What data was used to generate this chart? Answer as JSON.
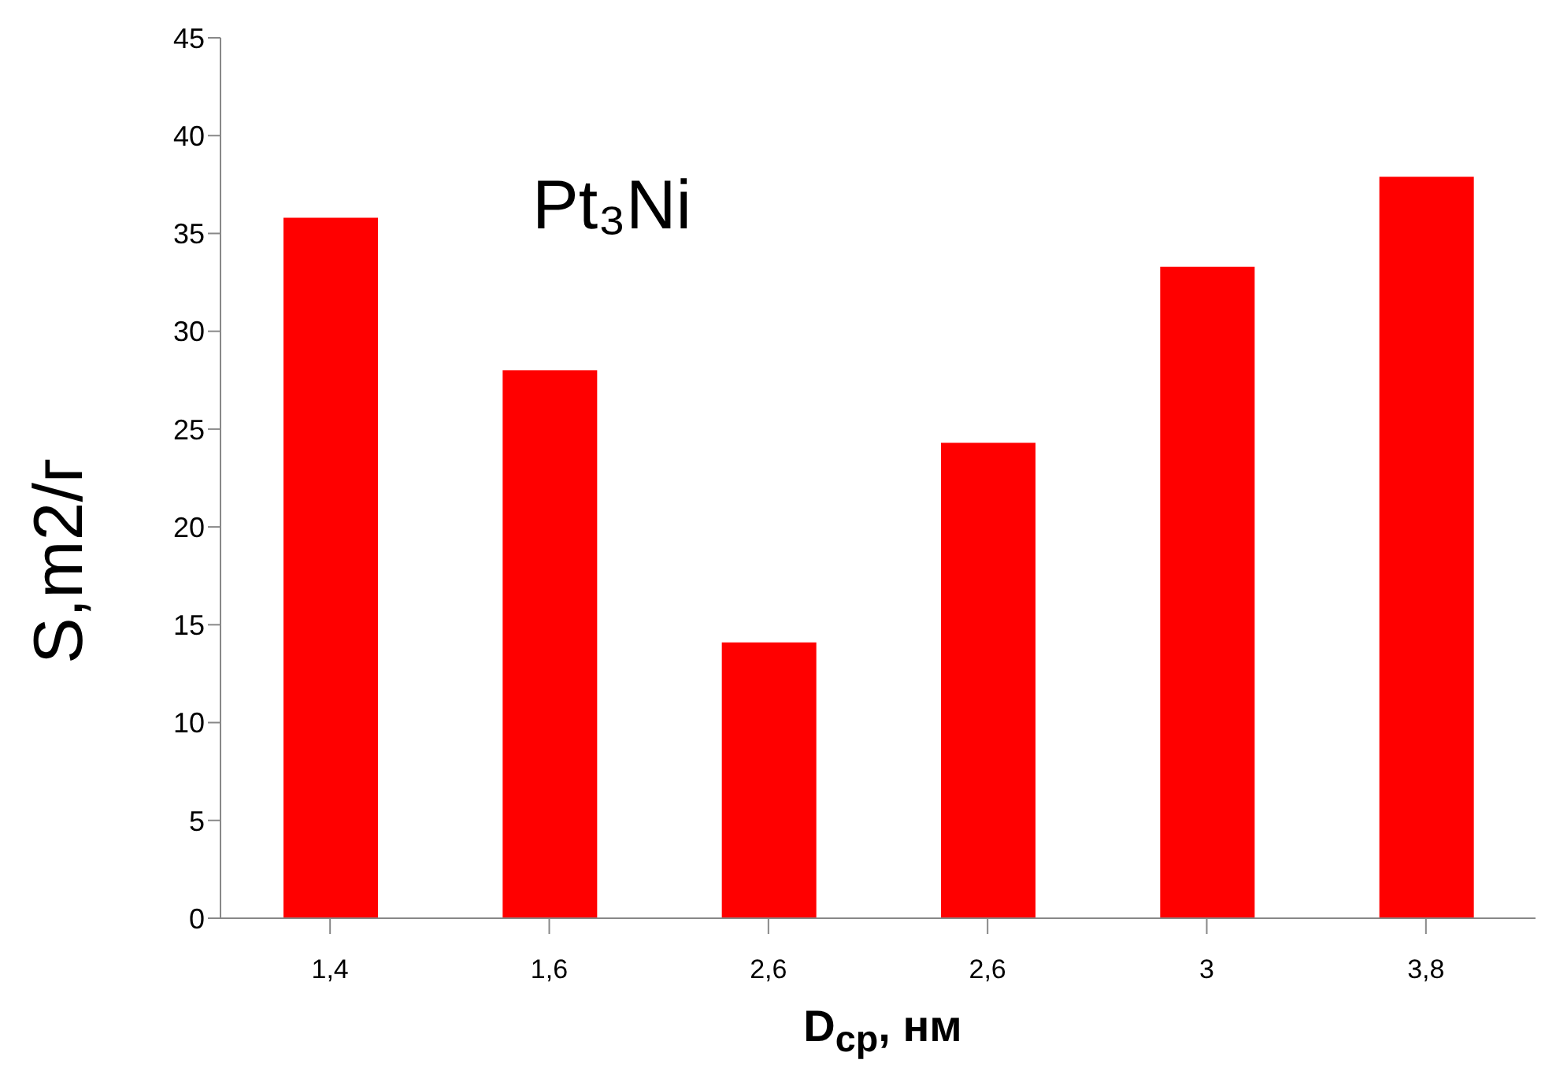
{
  "chart_data": {
    "type": "bar",
    "title": "Pt₃Ni",
    "xlabel": "D$_{ср}$, нм",
    "ylabel": "S,m2/г",
    "categories": [
      "1,4",
      "1,6",
      "2,6",
      "2,6",
      "3",
      "3,8"
    ],
    "values": [
      35.8,
      28.0,
      14.1,
      24.3,
      33.3,
      37.9
    ],
    "color": "#ff0000",
    "ylim": [
      0,
      45
    ],
    "yticks": [
      0,
      5,
      10,
      15,
      20,
      25,
      30,
      35,
      40,
      45
    ]
  }
}
